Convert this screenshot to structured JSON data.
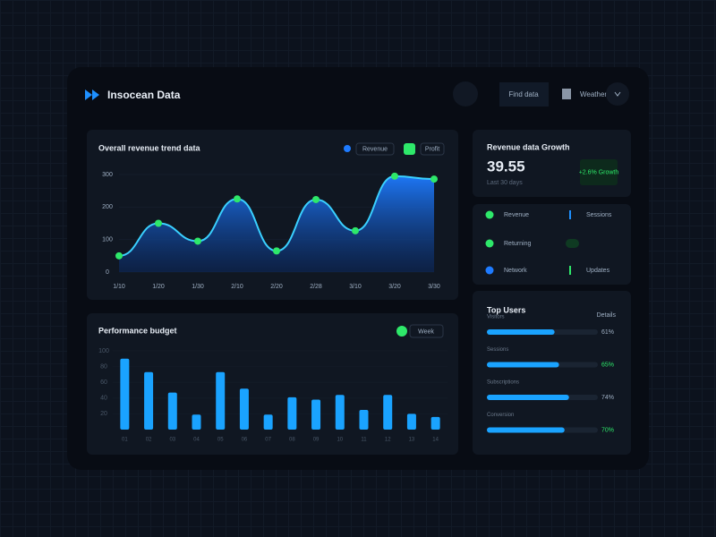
{
  "header": {
    "title": "Insocean Data",
    "search": "Find data",
    "user": "Weather"
  },
  "revenue_chart": {
    "type": "area",
    "title": "Overall revenue trend data",
    "legend": [
      "Revenue",
      "Profit"
    ],
    "categories": [
      "1/10",
      "1/20",
      "1/30",
      "2/10",
      "2/20",
      "2/28",
      "3/10",
      "3/20",
      "3/30"
    ],
    "values": [
      50,
      150,
      95,
      225,
      65,
      223,
      127,
      295,
      286
    ],
    "ylim": [
      0,
      300
    ],
    "yticks": [
      0,
      100,
      200,
      300
    ],
    "color": "#1e7bff"
  },
  "budget_chart": {
    "type": "bar",
    "title": "Performance budget",
    "filter": "Week",
    "categories": [
      "01",
      "02",
      "03",
      "04",
      "05",
      "06",
      "07",
      "08",
      "09",
      "10",
      "11",
      "12",
      "13",
      "14"
    ],
    "values": [
      90,
      73,
      47,
      19,
      73,
      52,
      19,
      41,
      38,
      44,
      25,
      44,
      20,
      16
    ],
    "ylim": [
      0,
      100
    ],
    "yticks": [
      20,
      40,
      60,
      80,
      100
    ],
    "color": "#1aa3ff"
  },
  "stat_card": {
    "title": "Revenue data Growth",
    "value": "39.55",
    "subtitle": "Last 30 days",
    "badge": "+2.6% Growth"
  },
  "status_list": {
    "items": [
      {
        "label": "Revenue",
        "detail": "Sessions"
      },
      {
        "label": "Returning"
      },
      {
        "label": "Network",
        "detail": "Updates"
      }
    ]
  },
  "progress": {
    "title": "Top Users",
    "link": "Details",
    "items": [
      {
        "label": "Visitors",
        "value": 61,
        "value_label": "61%"
      },
      {
        "label": "Sessions",
        "value": 65,
        "value_label": "65%"
      },
      {
        "label": "Subscriptions",
        "value": 74,
        "value_label": "74%"
      },
      {
        "label": "Conversion",
        "value": 70,
        "value_label": "70%"
      }
    ]
  }
}
